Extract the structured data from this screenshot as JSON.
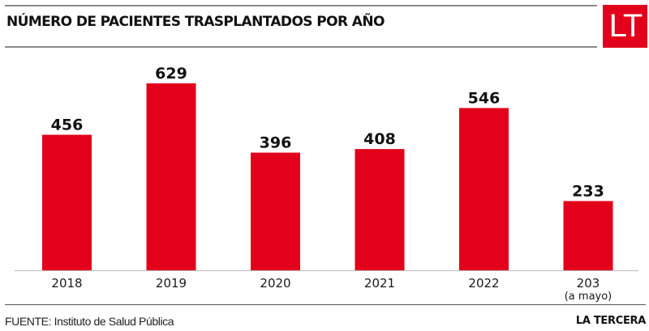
{
  "header": {
    "title": "NÚMERO DE PACIENTES TRASPLANTADOS POR AÑO",
    "logo_text": "LT"
  },
  "footer": {
    "source": "FUENTE: Instituto de Salud Pública",
    "brand": "LA TERCERA"
  },
  "colors": {
    "bar": "#e3001b",
    "logo_bg": "#e3001b",
    "text": "#111111",
    "rule": "#8a8a8a"
  },
  "chart_data": {
    "type": "bar",
    "title": "NÚMERO DE PACIENTES TRASPLANTADOS POR AÑO",
    "xlabel": "",
    "ylabel": "",
    "categories": [
      "2018",
      "2019",
      "2020",
      "2021",
      "2022",
      "203"
    ],
    "category_sublabels": [
      "",
      "",
      "",
      "",
      "",
      "(a mayo)"
    ],
    "values": [
      456,
      629,
      396,
      408,
      546,
      233
    ],
    "data_labels": [
      "456",
      "629",
      "396",
      "408",
      "546",
      "233"
    ],
    "ylim": [
      0,
      629
    ],
    "grid": false,
    "legend": "none"
  }
}
